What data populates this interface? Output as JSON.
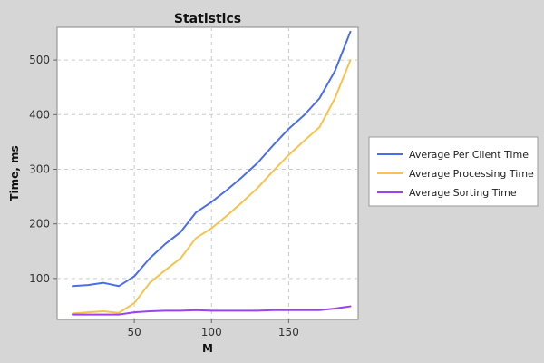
{
  "chart_data": {
    "type": "line",
    "title": "Statistics",
    "xlabel": "M",
    "ylabel": "Time, ms",
    "xlim": [
      0,
      195
    ],
    "ylim": [
      25,
      560
    ],
    "xticks": [
      50,
      100,
      150
    ],
    "yticks": [
      100,
      200,
      300,
      400,
      500
    ],
    "grid": true,
    "legend_position": "right",
    "x": [
      10,
      20,
      30,
      40,
      50,
      60,
      70,
      80,
      90,
      100,
      110,
      120,
      130,
      140,
      150,
      160,
      170,
      180,
      190
    ],
    "series": [
      {
        "name": "Average Per Client Time",
        "color": "#4a6ee8",
        "values": [
          86,
          88,
          92,
          86,
          104,
          137,
          163,
          185,
          221,
          240,
          262,
          286,
          312,
          344,
          374,
          399,
          430,
          480,
          552
        ]
      },
      {
        "name": "Average Processing Time",
        "color": "#f7c34e",
        "values": [
          36,
          38,
          40,
          37,
          55,
          92,
          115,
          137,
          174,
          192,
          215,
          240,
          266,
          297,
          326,
          352,
          377,
          430,
          500
        ]
      },
      {
        "name": "Average Sorting Time",
        "color": "#9a44f0",
        "values": [
          34,
          34,
          34,
          34,
          38,
          40,
          41,
          41,
          42,
          41,
          41,
          41,
          41,
          42,
          42,
          42,
          42,
          45,
          49
        ]
      }
    ]
  }
}
